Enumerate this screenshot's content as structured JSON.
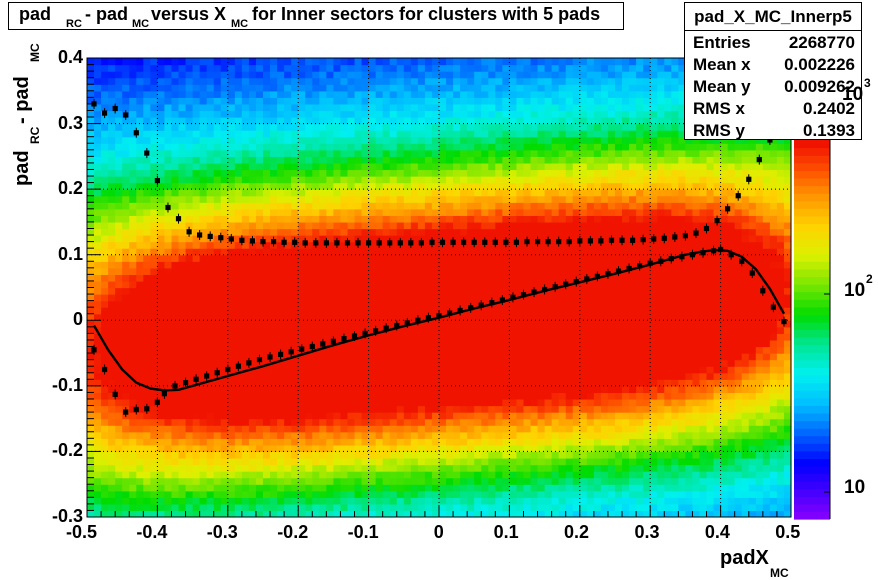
{
  "title": {
    "p1": "pad",
    "s1": "RC",
    "p2": " - pad",
    "s2": "MC",
    "p3": " versus X",
    "s3": "MC",
    "p4": " for Inner sectors for clusters with 5 pads"
  },
  "stats": {
    "name": "pad_X_MC_Innerp5",
    "rows": [
      {
        "key": "Entries",
        "value": "2268770"
      },
      {
        "key": "Mean x",
        "value": "0.002226"
      },
      {
        "key": "Mean y",
        "value": "0.009262"
      },
      {
        "key": "RMS x",
        "value": "0.2402"
      },
      {
        "key": "RMS y",
        "value": "0.1393"
      }
    ]
  },
  "ylabel": {
    "p1": "pad",
    "s1": "RC",
    "p2": " - pad",
    "s2": "MC"
  },
  "xlabel": {
    "p1": "padX",
    "s1": "MC"
  },
  "colorbar": {
    "labels": [
      "10",
      "10",
      "10"
    ],
    "exps": [
      "2",
      "3"
    ],
    "scale": "log"
  },
  "chart_data": {
    "type": "heatmap",
    "title": "pad_RC - pad_MC versus X_MC for Inner sectors for clusters with 5 pads",
    "xlabel": "padX_MC",
    "ylabel": "pad_RC - pad_MC",
    "xlim": [
      -0.5,
      0.5
    ],
    "ylim": [
      -0.3,
      0.4
    ],
    "xticks": [
      "-0.5",
      "-0.4",
      "-0.3",
      "-0.2",
      "-0.1",
      "0",
      "0.1",
      "0.2",
      "0.3",
      "0.4",
      "0.5"
    ],
    "yticks": [
      "-0.3",
      "-0.2",
      "-0.1",
      "0",
      "0.1",
      "0.2",
      "0.3",
      "0.4"
    ],
    "grid": true,
    "z_scale": "log",
    "profile_mean": {
      "x": [
        -0.49,
        -0.475,
        -0.46,
        -0.445,
        -0.43,
        -0.415,
        -0.4,
        -0.39,
        -0.375,
        -0.36,
        -0.345,
        -0.33,
        -0.315,
        -0.3,
        -0.285,
        -0.27,
        -0.255,
        -0.24,
        -0.225,
        -0.21,
        -0.195,
        -0.18,
        -0.165,
        -0.15,
        -0.135,
        -0.12,
        -0.105,
        -0.09,
        -0.075,
        -0.06,
        -0.045,
        -0.03,
        -0.015,
        0,
        0.015,
        0.03,
        0.045,
        0.06,
        0.075,
        0.09,
        0.105,
        0.12,
        0.135,
        0.15,
        0.165,
        0.18,
        0.195,
        0.21,
        0.225,
        0.24,
        0.255,
        0.27,
        0.285,
        0.3,
        0.315,
        0.33,
        0.345,
        0.36,
        0.375,
        0.39,
        0.4,
        0.415,
        0.43,
        0.445,
        0.46,
        0.475,
        0.49
      ],
      "y": [
        -0.045,
        -0.075,
        -0.113,
        -0.14,
        -0.136,
        -0.135,
        -0.125,
        -0.112,
        -0.1,
        -0.095,
        -0.09,
        -0.085,
        -0.08,
        -0.075,
        -0.07,
        -0.065,
        -0.06,
        -0.056,
        -0.052,
        -0.048,
        -0.044,
        -0.04,
        -0.036,
        -0.032,
        -0.028,
        -0.024,
        -0.02,
        -0.016,
        -0.012,
        -0.008,
        -0.004,
        0,
        0.004,
        0.007,
        0.011,
        0.015,
        0.019,
        0.023,
        0.027,
        0.031,
        0.035,
        0.039,
        0.043,
        0.047,
        0.051,
        0.055,
        0.059,
        0.063,
        0.067,
        0.071,
        0.075,
        0.079,
        0.083,
        0.087,
        0.09,
        0.094,
        0.097,
        0.1,
        0.103,
        0.106,
        0.108,
        0.1,
        0.09,
        0.072,
        0.045,
        0.02,
        -0.002
      ]
    },
    "profile_rms": {
      "x": [
        -0.49,
        -0.475,
        -0.46,
        -0.445,
        -0.43,
        -0.415,
        -0.4,
        -0.385,
        -0.37,
        -0.355,
        -0.34,
        -0.325,
        -0.31,
        -0.295,
        -0.28,
        -0.265,
        -0.25,
        -0.235,
        -0.22,
        -0.205,
        -0.19,
        -0.175,
        -0.16,
        -0.145,
        -0.13,
        -0.115,
        -0.1,
        -0.085,
        -0.07,
        -0.055,
        -0.04,
        -0.025,
        -0.01,
        0.005,
        0.02,
        0.035,
        0.05,
        0.065,
        0.08,
        0.095,
        0.11,
        0.125,
        0.14,
        0.155,
        0.17,
        0.185,
        0.2,
        0.215,
        0.23,
        0.245,
        0.26,
        0.275,
        0.29,
        0.305,
        0.32,
        0.335,
        0.35,
        0.365,
        0.38,
        0.395,
        0.41,
        0.425,
        0.44,
        0.455,
        0.47,
        0.485
      ],
      "y": [
        0.33,
        0.316,
        0.323,
        0.313,
        0.286,
        0.255,
        0.213,
        0.172,
        0.155,
        0.135,
        0.13,
        0.128,
        0.126,
        0.124,
        0.122,
        0.121,
        0.12,
        0.12,
        0.119,
        0.119,
        0.118,
        0.118,
        0.118,
        0.118,
        0.118,
        0.118,
        0.118,
        0.118,
        0.118,
        0.118,
        0.118,
        0.118,
        0.119,
        0.119,
        0.119,
        0.119,
        0.119,
        0.119,
        0.119,
        0.119,
        0.119,
        0.12,
        0.12,
        0.12,
        0.12,
        0.12,
        0.121,
        0.121,
        0.121,
        0.122,
        0.122,
        0.122,
        0.123,
        0.124,
        0.125,
        0.127,
        0.129,
        0.133,
        0.14,
        0.152,
        0.17,
        0.19,
        0.215,
        0.245,
        0.275,
        0.305
      ]
    },
    "fit_curve": {
      "x": [
        -0.49,
        -0.47,
        -0.45,
        -0.43,
        -0.41,
        -0.39,
        -0.37,
        -0.35,
        -0.3,
        -0.25,
        -0.2,
        -0.15,
        -0.1,
        -0.05,
        0,
        0.05,
        0.1,
        0.15,
        0.2,
        0.25,
        0.3,
        0.35,
        0.37,
        0.39,
        0.41,
        0.43,
        0.45,
        0.47,
        0.49
      ],
      "y": [
        -0.008,
        -0.045,
        -0.075,
        -0.095,
        -0.104,
        -0.107,
        -0.106,
        -0.1,
        -0.085,
        -0.07,
        -0.054,
        -0.038,
        -0.023,
        -0.009,
        0.004,
        0.018,
        0.031,
        0.045,
        0.058,
        0.071,
        0.085,
        0.1,
        0.104,
        0.107,
        0.106,
        0.097,
        0.078,
        0.048,
        0.01
      ]
    },
    "colors": {
      "high": "#ee1a00",
      "low": "#00f5ff",
      "frame_bg": "#ffffff"
    }
  }
}
